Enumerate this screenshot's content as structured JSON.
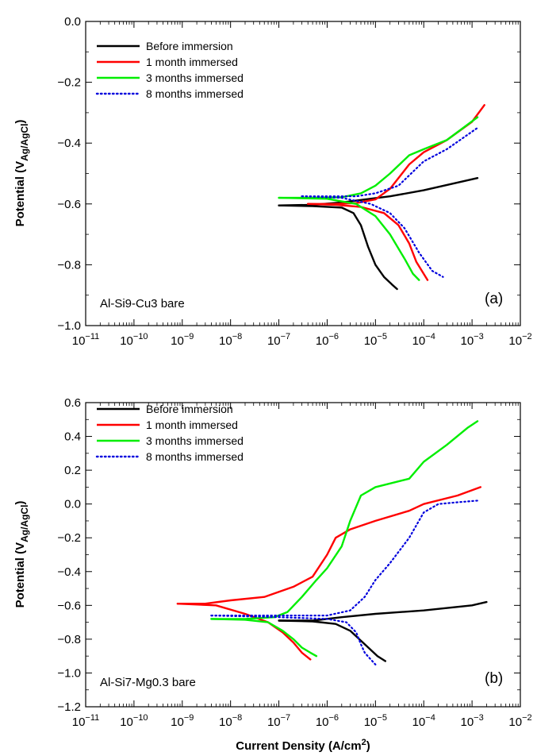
{
  "chart_data": [
    {
      "type": "line",
      "panel_label": "(a)",
      "annotation": "Al-Si9-Cu3 bare",
      "xlabel": "",
      "ylabel": "Potential (V",
      "ylabel_sub": "Ag/AgCl",
      "ylabel_close": ")",
      "x_scale": "log",
      "xlim": [
        1e-11,
        0.01
      ],
      "ylim": [
        -1.0,
        0.0
      ],
      "grid": false,
      "legend_position": "top-left",
      "x_tick_labels": [
        {
          "base": "10",
          "exp": "−11"
        },
        {
          "base": "10",
          "exp": "−10"
        },
        {
          "base": "10",
          "exp": "−9"
        },
        {
          "base": "10",
          "exp": "−8"
        },
        {
          "base": "10",
          "exp": "−7"
        },
        {
          "base": "10",
          "exp": "−6"
        },
        {
          "base": "10",
          "exp": "−5"
        },
        {
          "base": "10",
          "exp": "−4"
        },
        {
          "base": "10",
          "exp": "−3"
        },
        {
          "base": "10",
          "exp": "−2"
        }
      ],
      "y_ticks": [
        0.0,
        -0.2,
        -0.4,
        -0.6,
        -0.8,
        -1.0
      ],
      "y_tick_labels": [
        "0.0",
        "−0.2",
        "−0.4",
        "−0.6",
        "−0.8",
        "−1.0"
      ],
      "series": [
        {
          "name": "Before immersion",
          "color": "#000000",
          "dash": "solid",
          "branches": [
            {
              "x": [
                1e-07,
                5e-07,
                2e-06,
                5e-06,
                2e-05,
                0.0001,
                0.0013
              ],
              "y": [
                -0.605,
                -0.603,
                -0.595,
                -0.587,
                -0.575,
                -0.555,
                -0.515
              ]
            },
            {
              "x": [
                1e-07,
                5e-07,
                2e-06,
                3.5e-06,
                5e-06,
                7e-06,
                1e-05,
                1.5e-05,
                2.2e-05,
                2.8e-05
              ],
              "y": [
                -0.605,
                -0.607,
                -0.612,
                -0.63,
                -0.67,
                -0.74,
                -0.8,
                -0.84,
                -0.865,
                -0.88
              ]
            }
          ]
        },
        {
          "name": "1 month immersed",
          "color": "#ff0000",
          "dash": "solid",
          "branches": [
            {
              "x": [
                4e-07,
                1.5e-06,
                4e-06,
                1e-05,
                2e-05,
                5e-05,
                0.0001,
                0.0003,
                0.001,
                0.0018
              ],
              "y": [
                -0.6,
                -0.6,
                -0.597,
                -0.585,
                -0.55,
                -0.47,
                -0.43,
                -0.39,
                -0.33,
                -0.275
              ]
            },
            {
              "x": [
                4e-07,
                1.5e-06,
                5e-06,
                1.5e-05,
                3e-05,
                5e-05,
                7e-05,
                0.0001,
                0.00012
              ],
              "y": [
                -0.6,
                -0.603,
                -0.61,
                -0.63,
                -0.67,
                -0.73,
                -0.79,
                -0.83,
                -0.85
              ]
            }
          ]
        },
        {
          "name": "3 months immersed",
          "color": "#00ee00",
          "dash": "solid",
          "branches": [
            {
              "x": [
                1e-07,
                5e-07,
                2e-06,
                5e-06,
                1e-05,
                2e-05,
                5e-05,
                0.0001,
                0.0003,
                0.0013
              ],
              "y": [
                -0.58,
                -0.58,
                -0.578,
                -0.565,
                -0.54,
                -0.5,
                -0.44,
                -0.42,
                -0.39,
                -0.315
              ]
            },
            {
              "x": [
                1e-07,
                1e-06,
                4e-06,
                1e-05,
                2e-05,
                4e-05,
                6e-05,
                8e-05
              ],
              "y": [
                -0.58,
                -0.583,
                -0.6,
                -0.64,
                -0.7,
                -0.78,
                -0.83,
                -0.85
              ]
            }
          ]
        },
        {
          "name": "8 months immersed",
          "color": "#0000dd",
          "dash": "dotted",
          "branches": [
            {
              "x": [
                3e-07,
                1e-06,
                4e-06,
                1e-05,
                3e-05,
                0.0001,
                0.0003,
                0.0013
              ],
              "y": [
                -0.575,
                -0.575,
                -0.575,
                -0.565,
                -0.54,
                -0.46,
                -0.42,
                -0.35
              ]
            },
            {
              "x": [
                3e-07,
                2e-06,
                8e-06,
                2e-05,
                4e-05,
                8e-05,
                0.00015,
                0.00025
              ],
              "y": [
                -0.575,
                -0.58,
                -0.6,
                -0.63,
                -0.68,
                -0.76,
                -0.82,
                -0.84
              ]
            }
          ]
        }
      ]
    },
    {
      "type": "line",
      "panel_label": "(b)",
      "annotation": "Al-Si7-Mg0.3 bare",
      "xlabel": "Current Density (A/cm",
      "xlabel_sup": "2",
      "xlabel_close": ")",
      "ylabel": "Potential (V",
      "ylabel_sub": "Ag/AgCl",
      "ylabel_close": ")",
      "x_scale": "log",
      "xlim": [
        1e-11,
        0.01
      ],
      "ylim": [
        -1.2,
        0.6
      ],
      "grid": false,
      "legend_position": "top-left",
      "x_tick_labels": [
        {
          "base": "10",
          "exp": "−11"
        },
        {
          "base": "10",
          "exp": "−10"
        },
        {
          "base": "10",
          "exp": "−9"
        },
        {
          "base": "10",
          "exp": "−8"
        },
        {
          "base": "10",
          "exp": "−7"
        },
        {
          "base": "10",
          "exp": "−6"
        },
        {
          "base": "10",
          "exp": "−5"
        },
        {
          "base": "10",
          "exp": "−4"
        },
        {
          "base": "10",
          "exp": "−3"
        },
        {
          "base": "10",
          "exp": "−2"
        }
      ],
      "y_ticks": [
        0.6,
        0.4,
        0.2,
        0.0,
        -0.2,
        -0.4,
        -0.6,
        -0.8,
        -1.0,
        -1.2
      ],
      "y_tick_labels": [
        "0.6",
        "0.4",
        "0.2",
        "0.0",
        "−0.2",
        "−0.4",
        "−0.6",
        "−0.8",
        "−1.0",
        "−1.2"
      ],
      "series": [
        {
          "name": "Before immersion",
          "color": "#000000",
          "dash": "solid",
          "branches": [
            {
              "x": [
                1e-07,
                5e-07,
                2e-06,
                1e-05,
                0.0001,
                0.001,
                0.002
              ],
              "y": [
                -0.69,
                -0.69,
                -0.67,
                -0.65,
                -0.63,
                -0.6,
                -0.58
              ]
            },
            {
              "x": [
                1e-07,
                5e-07,
                1.5e-06,
                3e-06,
                6e-06,
                1.1e-05,
                1.6e-05
              ],
              "y": [
                -0.69,
                -0.695,
                -0.71,
                -0.75,
                -0.83,
                -0.9,
                -0.93
              ]
            }
          ]
        },
        {
          "name": "1 month immersed",
          "color": "#ff0000",
          "dash": "solid",
          "branches": [
            {
              "x": [
                8e-10,
                3e-09,
                1e-08,
                5e-08,
                2e-07,
                5e-07,
                1e-06,
                1.5e-06,
                3e-06,
                1e-05,
                5e-05,
                0.0001,
                0.0005,
                0.0015
              ],
              "y": [
                -0.59,
                -0.59,
                -0.57,
                -0.55,
                -0.49,
                -0.43,
                -0.3,
                -0.2,
                -0.15,
                -0.1,
                -0.04,
                0.0,
                0.05,
                0.1
              ]
            },
            {
              "x": [
                8e-10,
                5e-09,
                2e-08,
                6e-08,
                1.2e-07,
                2e-07,
                3e-07,
                4.5e-07
              ],
              "y": [
                -0.59,
                -0.6,
                -0.65,
                -0.7,
                -0.76,
                -0.82,
                -0.88,
                -0.92
              ]
            }
          ]
        },
        {
          "name": "3 months immersed",
          "color": "#00ee00",
          "dash": "solid",
          "branches": [
            {
              "x": [
                4e-09,
                2e-08,
                8e-08,
                1.5e-07,
                3e-07,
                6e-07,
                1e-06,
                2e-06,
                3e-06,
                5e-06,
                1e-05,
                5e-05,
                0.0001,
                0.0003,
                0.0008,
                0.0013
              ],
              "y": [
                -0.68,
                -0.68,
                -0.67,
                -0.64,
                -0.55,
                -0.45,
                -0.38,
                -0.25,
                -0.1,
                0.05,
                0.1,
                0.15,
                0.25,
                0.35,
                0.45,
                0.49
              ]
            },
            {
              "x": [
                4e-09,
                2e-08,
                6e-08,
                1.2e-07,
                2e-07,
                3e-07,
                4.5e-07,
                6e-07
              ],
              "y": [
                -0.68,
                -0.685,
                -0.7,
                -0.75,
                -0.8,
                -0.85,
                -0.88,
                -0.9
              ]
            }
          ]
        },
        {
          "name": "8 months immersed",
          "color": "#0000dd",
          "dash": "dotted",
          "branches": [
            {
              "x": [
                4e-09,
                1e-08,
                1e-07,
                1e-06,
                3e-06,
                6e-06,
                1e-05,
                2e-05,
                5e-05,
                0.0001,
                0.0002,
                0.0005,
                0.0013
              ],
              "y": [
                -0.66,
                -0.66,
                -0.66,
                -0.66,
                -0.63,
                -0.55,
                -0.45,
                -0.35,
                -0.2,
                -0.05,
                0.0,
                0.01,
                0.02
              ]
            },
            {
              "x": [
                4e-09,
                1e-07,
                1e-06,
                2.5e-06,
                4e-06,
                5e-06,
                6e-06,
                8e-06,
                1e-05
              ],
              "y": [
                -0.66,
                -0.67,
                -0.68,
                -0.7,
                -0.76,
                -0.83,
                -0.88,
                -0.92,
                -0.95
              ]
            }
          ]
        }
      ]
    }
  ]
}
